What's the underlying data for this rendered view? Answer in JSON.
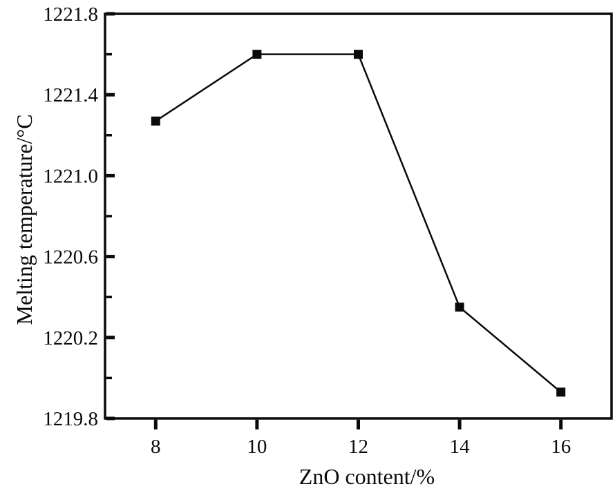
{
  "chart_data": {
    "type": "line",
    "title": "",
    "xlabel": "ZnO content/%",
    "ylabel": "Melting temperature/°C",
    "series": [
      {
        "name": "Melting temperature",
        "x": [
          8,
          10,
          12,
          14,
          16
        ],
        "y": [
          1221.27,
          1221.6,
          1221.6,
          1220.35,
          1219.93
        ]
      }
    ],
    "xlim": [
      7,
      17
    ],
    "ylim": [
      1219.8,
      1221.8
    ],
    "x_ticks": [
      8,
      10,
      12,
      14,
      16
    ],
    "x_tick_labels": [
      "8",
      "10",
      "12",
      "14",
      "16"
    ],
    "y_major_ticks": [
      1219.8,
      1220.2,
      1220.6,
      1221.0,
      1221.4,
      1221.8
    ],
    "y_major_tick_labels": [
      "1219.8",
      "1220.2",
      "1220.6",
      "1221.0",
      "1221.4",
      "1221.8"
    ],
    "y_minor_ticks": [
      1220.0,
      1220.4,
      1220.8,
      1221.2,
      1221.6
    ],
    "marker": "square",
    "grid": false,
    "legend": false,
    "line_color": "#0a0a0a",
    "marker_color": "#0a0a0a",
    "background_color": "#ffffff"
  }
}
